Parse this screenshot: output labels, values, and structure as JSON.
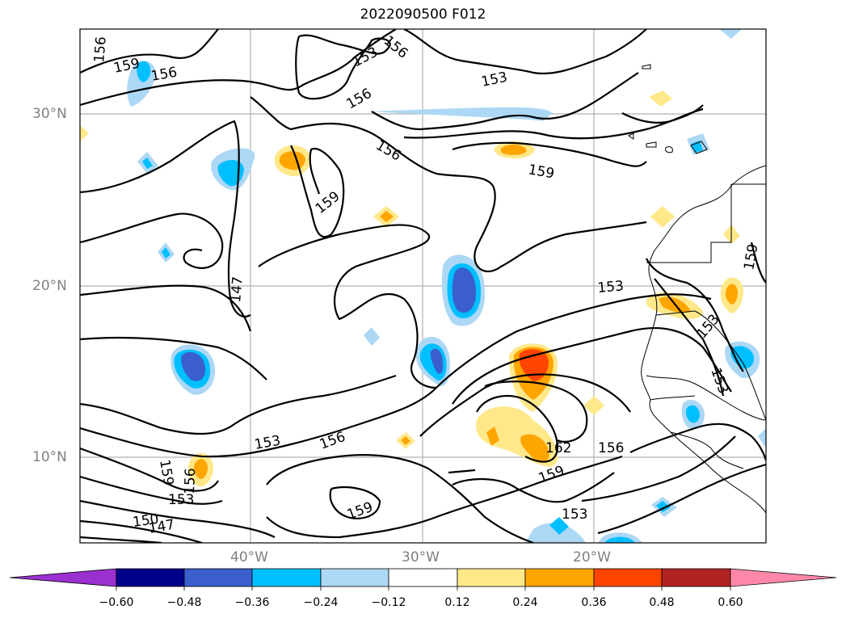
{
  "title": "2022090500 F012",
  "map": {
    "lat_labels": [
      "30°N",
      "20°N",
      "10°N"
    ],
    "lon_labels": [
      "40°W",
      "30°W",
      "20°W"
    ],
    "contour_labels": [
      "156",
      "159",
      "156",
      "153",
      "156",
      "153",
      "156",
      "156",
      "159",
      "159",
      "147",
      "153",
      "156",
      "162",
      "156",
      "159",
      "159",
      "153",
      "153",
      "153",
      "159",
      "159",
      "156",
      "153",
      "150",
      "147"
    ]
  },
  "colorbar": {
    "ticks": [
      "−0.60",
      "−0.48",
      "−0.36",
      "−0.24",
      "−0.12",
      "0.12",
      "0.24",
      "0.36",
      "0.48",
      "0.60"
    ],
    "colors": [
      "#9b30d0",
      "#00008b",
      "#3a5fcd",
      "#00bfff",
      "#add8f5",
      "#ffffff",
      "#ffe88a",
      "#ffa500",
      "#ff4500",
      "#b22222",
      "#ff88aa"
    ]
  }
}
